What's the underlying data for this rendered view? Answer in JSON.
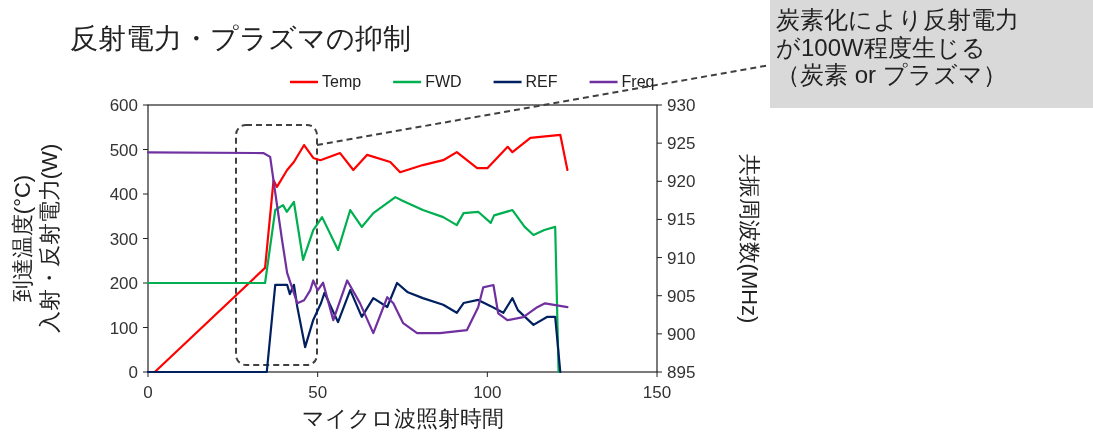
{
  "chart_data": {
    "type": "line",
    "title": "反射電力・プラズマの抑制",
    "xlabel": "マイクロ波照射時間",
    "ylabel": "到達温度(°C)\n入射・反射電力(W)",
    "y2label": "共振周波数(MHz)",
    "xlim": [
      0,
      150
    ],
    "xticks": [
      0,
      50,
      100,
      150
    ],
    "ylim": [
      0,
      600
    ],
    "yticks": [
      0,
      100,
      200,
      300,
      400,
      500,
      600
    ],
    "y2lim": [
      895,
      930
    ],
    "y2ticks": [
      895,
      900,
      905,
      910,
      915,
      920,
      925,
      930
    ],
    "legend": "top",
    "grid": false,
    "annotations": [
      "炭素化により反射電力が100W程度生じる（炭素 or プラズマ）"
    ],
    "series": [
      {
        "name": "Temp",
        "color": "#ff0000",
        "x": [
          2,
          34.5,
          37,
          38,
          41,
          43,
          46,
          48.7,
          50.8,
          56.6,
          60.5,
          64.6,
          71.4,
          74.3,
          81,
          87,
          91,
          97,
          100,
          106,
          107.4,
          112.7,
          121.5,
          123.6
        ],
        "values": [
          0,
          234,
          431,
          416,
          454,
          472,
          510,
          481,
          476,
          492,
          454,
          488,
          472,
          449,
          465,
          476,
          494,
          458,
          458,
          506,
          494,
          526,
          533,
          454
        ]
      },
      {
        "name": "FWD",
        "color": "#00b050",
        "x": [
          0,
          34.5,
          37.5,
          39.8,
          40.9,
          43,
          45.7,
          48.7,
          51.3,
          56,
          59.6,
          63,
          66.4,
          72.9,
          75,
          81,
          87,
          91,
          93,
          97.3,
          101,
          102,
          107.4,
          111,
          113.6,
          116.8,
          120,
          121
        ],
        "values": [
          200,
          200,
          364,
          375,
          360,
          382,
          252,
          319,
          348,
          274,
          364,
          326,
          357,
          393,
          385,
          364,
          348,
          330,
          357,
          360,
          335,
          352,
          364,
          326,
          308,
          319,
          326,
          0
        ]
      },
      {
        "name": "REF",
        "color": "#002060",
        "x": [
          0,
          35,
          37.5,
          41,
          41.8,
          43,
          44,
          46.3,
          48.7,
          51,
          52,
          56,
          59.6,
          63,
          66.4,
          70.5,
          73.4,
          76.4,
          81,
          87,
          91,
          93,
          97.3,
          101,
          104.7,
          107.4,
          109,
          113.6,
          117.7,
          120,
          121.5
        ],
        "values": [
          0,
          0,
          196,
          196,
          175,
          196,
          146,
          56,
          117,
          155,
          178,
          112,
          184,
          124,
          166,
          146,
          200,
          180,
          166,
          151,
          133,
          155,
          162,
          148,
          133,
          166,
          139,
          106,
          124,
          124,
          0
        ]
      },
      {
        "name": "Freq",
        "color": "#7030a0",
        "axis": "y2",
        "x": [
          0,
          34,
          36,
          37.5,
          39.5,
          41,
          44,
          46,
          47.8,
          48.7,
          50,
          51.6,
          54.6,
          58.7,
          62.5,
          66.4,
          70.5,
          72.3,
          75.2,
          79.3,
          86,
          94,
          97.3,
          98.8,
          101.8,
          103.2,
          105.9,
          110.6,
          114.7,
          117,
          123.6
        ],
        "values": [
          923.8,
          923.7,
          923.2,
          918.5,
          912.3,
          908,
          904,
          904.4,
          905.7,
          907,
          905.7,
          906.7,
          901.8,
          907,
          904,
          900.1,
          904.8,
          904,
          901.4,
          900.1,
          900.1,
          900.5,
          903.5,
          906.1,
          906.4,
          902.7,
          901.8,
          902.2,
          903.5,
          904,
          903.5
        ]
      }
    ]
  }
}
